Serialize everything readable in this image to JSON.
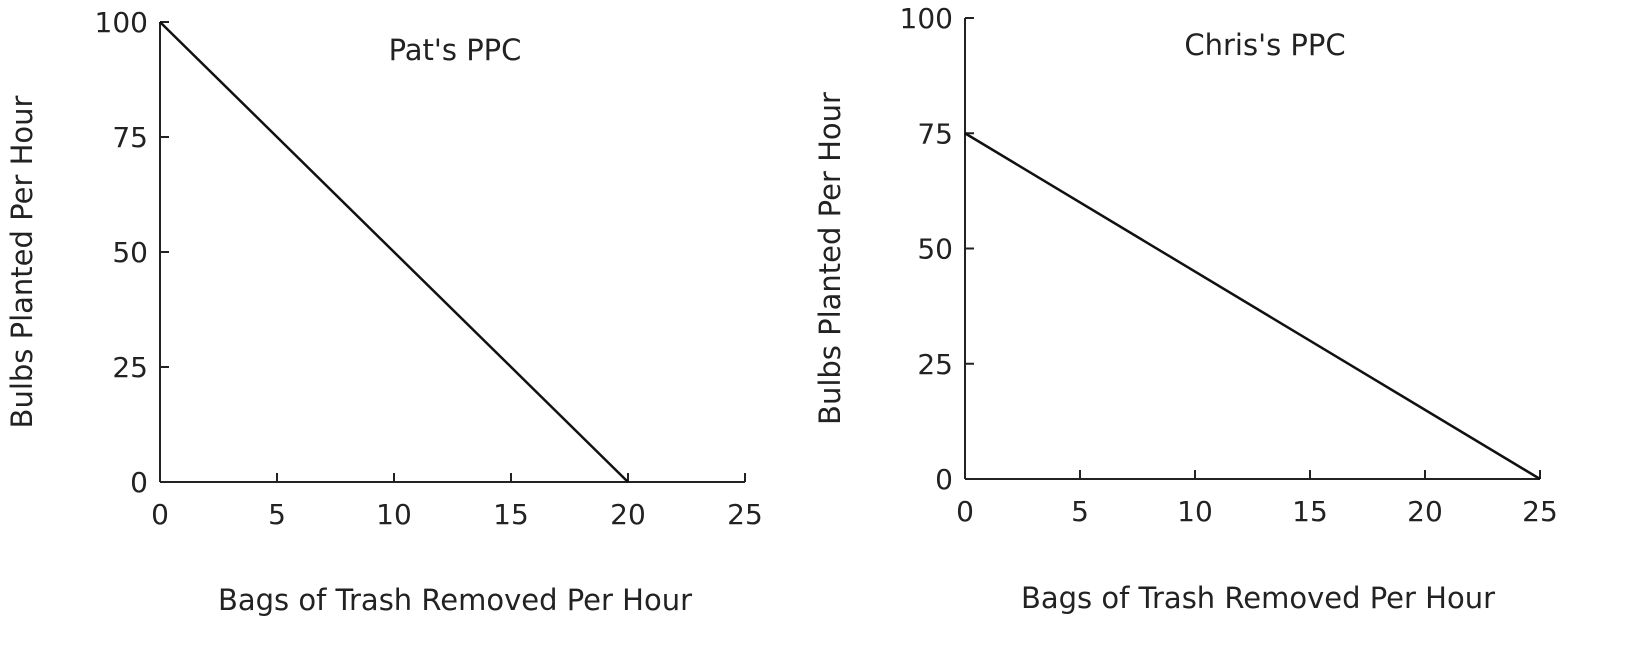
{
  "chart_data": [
    {
      "type": "line",
      "title": "Pat's PPC",
      "xlabel": "Bags of Trash Removed Per Hour",
      "ylabel": "Bulbs Planted Per Hour",
      "xlim": [
        0,
        25
      ],
      "ylim": [
        0,
        100
      ],
      "xticks": [
        0,
        5,
        10,
        15,
        20,
        25
      ],
      "yticks": [
        0,
        25,
        50,
        75,
        100
      ],
      "grid": false,
      "series": [
        {
          "x": [
            0,
            20
          ],
          "y": [
            100,
            0
          ],
          "color": "#111111"
        }
      ]
    },
    {
      "type": "line",
      "title": "Chris's PPC",
      "xlabel": "Bags of Trash Removed Per Hour",
      "ylabel": "Bulbs Planted Per Hour",
      "xlim": [
        0,
        25
      ],
      "ylim": [
        0,
        100
      ],
      "xticks": [
        0,
        5,
        10,
        15,
        20,
        25
      ],
      "yticks": [
        0,
        25,
        50,
        75,
        100
      ],
      "grid": false,
      "series": [
        {
          "x": [
            0,
            25
          ],
          "y": [
            75,
            0
          ],
          "color": "#111111"
        }
      ]
    }
  ]
}
